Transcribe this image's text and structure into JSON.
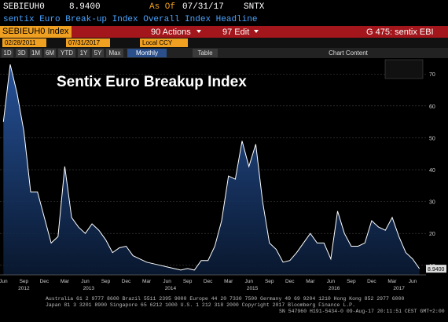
{
  "terminal": {
    "ticker": "SEBIEUH0",
    "price": "8.9400",
    "as_of_label": "As Of",
    "as_of": "07/31/17",
    "source": "SNTX",
    "headline": "sentix Euro Break-up Index Overall Index Headline",
    "security": "SEBIEUH0 Index",
    "actions": "90 Actions",
    "edit": "97 Edit",
    "page": "G 475: sentix EBI",
    "start_date": "02/28/2011",
    "end_date": "07/31/2017",
    "currency": "Local CCY",
    "ranges": [
      "1D",
      "3D",
      "1M",
      "6M",
      "YTD",
      "1Y",
      "5Y",
      "Max"
    ],
    "period": "Monthly",
    "table": "Table",
    "chart_content": "Chart Content",
    "footer": [
      "Australia 61 2 9777 8600 Brazil 5511 2395 9000 Europe 44 20 7330 7500 Germany 49 69 9204 1210 Hong Kong 852 2977 6000",
      "Japan 81 3 3201 8900       Singapore 65 6212 1000       U.S. 1 212 318 2000       Copyright 2017 Bloomberg Finance L.P.",
      "SN 547960 H191-5434-0 09-Aug-17 20:11:51 CEST GMT+2:00"
    ]
  },
  "chart_data": {
    "type": "area",
    "title": "Sentix Euro Breakup Index",
    "categories": [
      "Jun",
      null,
      null,
      "Sep",
      null,
      null,
      "Dec",
      null,
      null,
      "Mar",
      null,
      null,
      "Jun",
      null,
      null,
      "Sep",
      null,
      null,
      "Dec",
      null,
      null,
      "Mar",
      null,
      null,
      "Jun",
      null,
      null,
      "Sep",
      null,
      null,
      "Dec",
      null,
      null,
      "Mar",
      null,
      null,
      "Jun",
      null,
      null,
      "Sep",
      null,
      null,
      "Dec",
      null,
      null,
      "Mar",
      null,
      null,
      "Jun",
      null,
      null,
      "Sep",
      null,
      null,
      "Dec",
      null,
      null,
      "Mar",
      null,
      null,
      "Jun",
      null
    ],
    "years": [
      "2012",
      "2013",
      "2014",
      "2015",
      "2016",
      "2017"
    ],
    "values": [
      55,
      73,
      64,
      52,
      33,
      33,
      25,
      17,
      19,
      41,
      25,
      22,
      20,
      23,
      21,
      18,
      14,
      15.5,
      16,
      13,
      12,
      11,
      10.5,
      10,
      9.5,
      9,
      8.5,
      9,
      8.5,
      11.5,
      11.5,
      16,
      24,
      38,
      37,
      49,
      41,
      48,
      30,
      17,
      15,
      11,
      11.5,
      14,
      17,
      20,
      17,
      17,
      12,
      27,
      20,
      16,
      16,
      17,
      24,
      22,
      21,
      25,
      19,
      14,
      12,
      8.94
    ],
    "last_label": "8.9400",
    "color": "#ffffff",
    "fill": "#1c3f7a",
    "ylim": [
      7,
      74
    ],
    "yticks": [
      10,
      20,
      30,
      40,
      50,
      60,
      70
    ],
    "grid": true
  }
}
